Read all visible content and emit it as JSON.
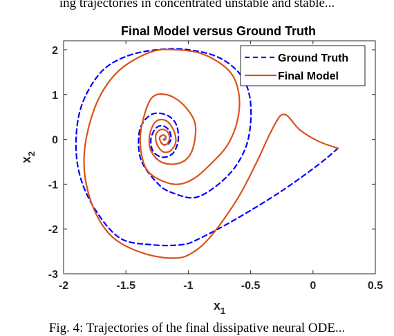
{
  "caption_top": "ing trajectories in concentrated unstable and stable...",
  "caption_bottom": "Fig. 4: Trajectories of the final dissipative neural ODE...",
  "chart_data": {
    "type": "line",
    "title": "Final Model versus Ground Truth",
    "xlabel": "x",
    "xlabel_sub": "1",
    "ylabel": "x",
    "ylabel_sub": "2",
    "xlim": [
      -2,
      0.5
    ],
    "ylim": [
      -3,
      2.2
    ],
    "xticks": [
      -2,
      -1.5,
      -1,
      -0.5,
      0,
      0.5
    ],
    "xtick_labels": [
      "-2",
      "-1.5",
      "-1",
      "-0.5",
      "0",
      "0.5"
    ],
    "yticks": [
      -3,
      -2,
      -1,
      0,
      1,
      2
    ],
    "ytick_labels": [
      "-3",
      "-2",
      "-1",
      "0",
      "1",
      "2"
    ],
    "legend_position": "top-right",
    "series": [
      {
        "name": "Ground Truth",
        "color": "#0000ff",
        "style": "dashed",
        "points": [
          [
            0.2,
            -0.2
          ],
          [
            0.05,
            -0.55
          ],
          [
            -0.25,
            -1.15
          ],
          [
            -0.6,
            -1.75
          ],
          [
            -0.9,
            -2.2
          ],
          [
            -1.05,
            -2.35
          ],
          [
            -1.3,
            -2.35
          ],
          [
            -1.55,
            -2.2
          ],
          [
            -1.75,
            -1.55
          ],
          [
            -1.87,
            -0.8
          ],
          [
            -1.9,
            0.0
          ],
          [
            -1.85,
            0.8
          ],
          [
            -1.7,
            1.5
          ],
          [
            -1.5,
            1.85
          ],
          [
            -1.25,
            2.0
          ],
          [
            -1.0,
            2.0
          ],
          [
            -0.75,
            1.82
          ],
          [
            -0.57,
            1.4
          ],
          [
            -0.5,
            0.8
          ],
          [
            -0.52,
            0.0
          ],
          [
            -0.62,
            -0.6
          ],
          [
            -0.78,
            -1.05
          ],
          [
            -0.95,
            -1.3
          ],
          [
            -1.12,
            -1.2
          ],
          [
            -1.24,
            -1.0
          ],
          [
            -1.38,
            -0.45
          ],
          [
            -1.39,
            0.2
          ],
          [
            -1.3,
            0.55
          ],
          [
            -1.18,
            0.55
          ],
          [
            -1.1,
            0.35
          ],
          [
            -1.08,
            0.0
          ],
          [
            -1.12,
            -0.3
          ],
          [
            -1.2,
            -0.4
          ],
          [
            -1.28,
            -0.28
          ],
          [
            -1.3,
            0.0
          ],
          [
            -1.26,
            0.25
          ],
          [
            -1.2,
            0.3
          ],
          [
            -1.15,
            0.18
          ],
          [
            -1.14,
            0.0
          ],
          [
            -1.17,
            -0.12
          ],
          [
            -1.21,
            -0.1
          ],
          [
            -1.23,
            0.03
          ],
          [
            -1.2,
            0.1
          ],
          [
            -1.18,
            0.05
          ],
          [
            -1.19,
            0.0
          ]
        ]
      },
      {
        "name": "Final Model",
        "color": "#d95319",
        "style": "solid",
        "points": [
          [
            0.2,
            -0.2
          ],
          [
            0.05,
            -0.05
          ],
          [
            -0.1,
            0.2
          ],
          [
            -0.18,
            0.45
          ],
          [
            -0.22,
            0.55
          ],
          [
            -0.27,
            0.5
          ],
          [
            -0.35,
            0.1
          ],
          [
            -0.45,
            -0.5
          ],
          [
            -0.6,
            -1.3
          ],
          [
            -0.8,
            -2.1
          ],
          [
            -0.95,
            -2.5
          ],
          [
            -1.1,
            -2.65
          ],
          [
            -1.35,
            -2.55
          ],
          [
            -1.6,
            -2.2
          ],
          [
            -1.75,
            -1.6
          ],
          [
            -1.83,
            -0.8
          ],
          [
            -1.82,
            0.0
          ],
          [
            -1.72,
            0.9
          ],
          [
            -1.55,
            1.55
          ],
          [
            -1.3,
            1.95
          ],
          [
            -1.1,
            2.0
          ],
          [
            -0.88,
            1.9
          ],
          [
            -0.68,
            1.55
          ],
          [
            -0.6,
            1.1
          ],
          [
            -0.6,
            0.5
          ],
          [
            -0.68,
            -0.1
          ],
          [
            -0.82,
            -0.55
          ],
          [
            -0.97,
            -0.9
          ],
          [
            -1.12,
            -1.0
          ],
          [
            -1.3,
            -0.78
          ],
          [
            -1.37,
            -0.4
          ],
          [
            -1.38,
            0.2
          ],
          [
            -1.3,
            0.9
          ],
          [
            -1.18,
            1.0
          ],
          [
            -1.05,
            0.8
          ],
          [
            -0.95,
            0.4
          ],
          [
            -0.95,
            -0.05
          ],
          [
            -1.0,
            -0.4
          ],
          [
            -1.1,
            -0.55
          ],
          [
            -1.22,
            -0.5
          ],
          [
            -1.3,
            -0.25
          ],
          [
            -1.31,
            0.1
          ],
          [
            -1.26,
            0.4
          ],
          [
            -1.18,
            0.42
          ],
          [
            -1.12,
            0.22
          ],
          [
            -1.1,
            -0.05
          ],
          [
            -1.14,
            -0.25
          ],
          [
            -1.2,
            -0.28
          ],
          [
            -1.25,
            -0.12
          ],
          [
            -1.26,
            0.1
          ],
          [
            -1.22,
            0.22
          ],
          [
            -1.17,
            0.18
          ],
          [
            -1.15,
            0.03
          ],
          [
            -1.17,
            -0.1
          ],
          [
            -1.21,
            -0.1
          ],
          [
            -1.23,
            0.03
          ],
          [
            -1.2,
            0.1
          ],
          [
            -1.18,
            0.04
          ],
          [
            -1.19,
            -0.02
          ],
          [
            -1.2,
            0.0
          ]
        ]
      }
    ]
  }
}
